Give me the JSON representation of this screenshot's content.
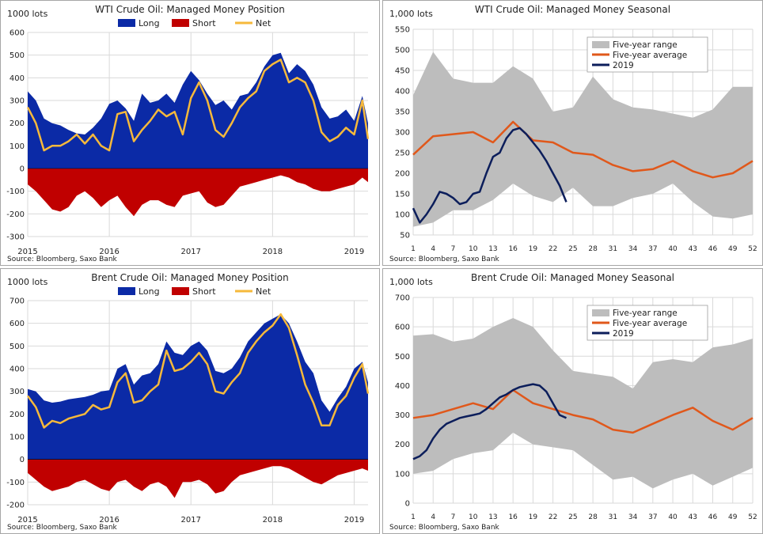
{
  "colors": {
    "long": "#0b2aa6",
    "short": "#c00000",
    "net": "#f6b93b",
    "range": "#bdbdbd",
    "avg": "#e0581b",
    "y2019": "#0c1e5b",
    "grid": "#d9d9d9"
  },
  "chart_data": [
    {
      "type": "area",
      "title": "WTI Crude Oil: Managed Money Position",
      "unit_label": "1000 lots",
      "source": "Source: Bloomberg, Saxo Bank",
      "legend": [
        "Long",
        "Short",
        "Net"
      ],
      "legend_position": "top",
      "grid": true,
      "ylim": [
        -300,
        600
      ],
      "yticks": [
        "600",
        "500",
        "400",
        "300",
        "200",
        "100",
        "0",
        "-100",
        "-200",
        "-300"
      ],
      "xticks": [
        "2015",
        "2016",
        "2017",
        "2018",
        "2019"
      ],
      "x_range": [
        2015.0,
        2019.17
      ],
      "x": [
        2015.0,
        2015.1,
        2015.2,
        2015.3,
        2015.4,
        2015.5,
        2015.6,
        2015.7,
        2015.8,
        2015.9,
        2016.0,
        2016.1,
        2016.2,
        2016.3,
        2016.4,
        2016.5,
        2016.6,
        2016.7,
        2016.8,
        2016.9,
        2017.0,
        2017.1,
        2017.2,
        2017.3,
        2017.4,
        2017.5,
        2017.6,
        2017.7,
        2017.8,
        2017.9,
        2018.0,
        2018.1,
        2018.2,
        2018.3,
        2018.4,
        2018.5,
        2018.6,
        2018.7,
        2018.8,
        2018.9,
        2019.0,
        2019.1,
        2019.17
      ],
      "series": [
        {
          "name": "Long",
          "values": [
            340,
            300,
            220,
            200,
            190,
            170,
            155,
            150,
            180,
            220,
            285,
            300,
            265,
            210,
            330,
            290,
            300,
            330,
            290,
            370,
            430,
            390,
            330,
            280,
            300,
            260,
            320,
            330,
            380,
            450,
            500,
            510,
            420,
            460,
            430,
            370,
            270,
            220,
            230,
            260,
            210,
            320,
            200
          ]
        },
        {
          "name": "Short",
          "values": [
            -70,
            -100,
            -140,
            -180,
            -190,
            -170,
            -120,
            -100,
            -130,
            -170,
            -140,
            -120,
            -170,
            -210,
            -160,
            -140,
            -140,
            -160,
            -170,
            -120,
            -110,
            -100,
            -150,
            -170,
            -160,
            -120,
            -80,
            -70,
            -60,
            -50,
            -40,
            -30,
            -40,
            -60,
            -70,
            -90,
            -100,
            -100,
            -90,
            -80,
            -70,
            -40,
            -60
          ]
        },
        {
          "name": "Net",
          "values": [
            270,
            200,
            80,
            100,
            100,
            120,
            150,
            110,
            150,
            100,
            80,
            240,
            250,
            120,
            170,
            210,
            260,
            230,
            250,
            150,
            310,
            380,
            300,
            170,
            140,
            200,
            270,
            310,
            340,
            430,
            460,
            480,
            380,
            400,
            380,
            300,
            160,
            120,
            140,
            180,
            150,
            300,
            130
          ]
        }
      ]
    },
    {
      "type": "area",
      "title": "WTI Crude Oil: Managed Money Seasonal",
      "unit_label": "1,000 lots",
      "source": "Source: Bloomberg, Saxo Bank",
      "legend": [
        "Five-year range",
        "Five-year average",
        "2019"
      ],
      "legend_position": "top-right",
      "grid": true,
      "ylim": [
        50,
        550
      ],
      "yticks": [
        "550",
        "500",
        "450",
        "400",
        "350",
        "300",
        "250",
        "200",
        "150",
        "100",
        "50"
      ],
      "xticks": [
        "1",
        "4",
        "7",
        "10",
        "13",
        "16",
        "19",
        "22",
        "25",
        "28",
        "31",
        "34",
        "37",
        "40",
        "43",
        "46",
        "49",
        "52"
      ],
      "x_range": [
        1,
        52
      ],
      "x": [
        1,
        4,
        7,
        10,
        13,
        16,
        19,
        22,
        25,
        28,
        31,
        34,
        37,
        40,
        43,
        46,
        49,
        52
      ],
      "range_upper": [
        390,
        495,
        430,
        420,
        420,
        460,
        430,
        350,
        360,
        435,
        380,
        360,
        355,
        345,
        335,
        355,
        410,
        410
      ],
      "range_lower": [
        70,
        80,
        110,
        110,
        135,
        175,
        145,
        130,
        165,
        120,
        120,
        140,
        150,
        175,
        130,
        95,
        90,
        100
      ],
      "series": [
        {
          "name": "Five-year average",
          "values": [
            245,
            290,
            295,
            300,
            275,
            325,
            280,
            275,
            250,
            245,
            220,
            205,
            210,
            230,
            205,
            190,
            200,
            230
          ]
        },
        {
          "name": "2019",
          "x": [
            1,
            2,
            3,
            4,
            5,
            6,
            7,
            8,
            9,
            10,
            11,
            12,
            13,
            14,
            15,
            16,
            17,
            18,
            19,
            20,
            21,
            22,
            23,
            24
          ],
          "values": [
            115,
            80,
            100,
            125,
            155,
            150,
            140,
            125,
            130,
            150,
            155,
            200,
            240,
            250,
            285,
            305,
            310,
            295,
            275,
            255,
            230,
            200,
            170,
            130
          ]
        }
      ]
    },
    {
      "type": "area",
      "title": "Brent Crude Oil: Managed Money Position",
      "unit_label": "1000 lots",
      "source": "Source: Bloomberg, Saxo Bank",
      "legend": [
        "Long",
        "Short",
        "Net"
      ],
      "legend_position": "top",
      "grid": true,
      "ylim": [
        -200,
        700
      ],
      "yticks": [
        "700",
        "600",
        "500",
        "400",
        "300",
        "200",
        "100",
        "0",
        "-100",
        "-200"
      ],
      "xticks": [
        "2015",
        "2016",
        "2017",
        "2018",
        "2019"
      ],
      "x_range": [
        2015.0,
        2019.17
      ],
      "x": [
        2015.0,
        2015.1,
        2015.2,
        2015.3,
        2015.4,
        2015.5,
        2015.6,
        2015.7,
        2015.8,
        2015.9,
        2016.0,
        2016.1,
        2016.2,
        2016.3,
        2016.4,
        2016.5,
        2016.6,
        2016.7,
        2016.8,
        2016.9,
        2017.0,
        2017.1,
        2017.2,
        2017.3,
        2017.4,
        2017.5,
        2017.6,
        2017.7,
        2017.8,
        2017.9,
        2018.0,
        2018.1,
        2018.2,
        2018.3,
        2018.4,
        2018.5,
        2018.6,
        2018.7,
        2018.8,
        2018.9,
        2019.0,
        2019.1,
        2019.17
      ],
      "series": [
        {
          "name": "Long",
          "values": [
            310,
            300,
            260,
            250,
            255,
            265,
            270,
            275,
            285,
            300,
            305,
            400,
            420,
            330,
            370,
            380,
            420,
            520,
            470,
            460,
            500,
            520,
            480,
            390,
            380,
            400,
            450,
            520,
            560,
            600,
            620,
            640,
            600,
            520,
            430,
            380,
            260,
            210,
            270,
            320,
            400,
            430,
            340
          ]
        },
        {
          "name": "Short",
          "values": [
            -60,
            -90,
            -120,
            -140,
            -130,
            -120,
            -100,
            -90,
            -110,
            -130,
            -140,
            -100,
            -90,
            -120,
            -140,
            -110,
            -100,
            -120,
            -170,
            -100,
            -100,
            -90,
            -110,
            -150,
            -140,
            -100,
            -70,
            -60,
            -50,
            -40,
            -30,
            -30,
            -40,
            -60,
            -80,
            -100,
            -110,
            -90,
            -70,
            -60,
            -50,
            -40,
            -50
          ]
        },
        {
          "name": "Net",
          "values": [
            280,
            230,
            140,
            170,
            160,
            180,
            190,
            200,
            240,
            220,
            230,
            340,
            380,
            250,
            260,
            300,
            330,
            480,
            390,
            400,
            430,
            470,
            420,
            300,
            290,
            340,
            380,
            470,
            520,
            560,
            590,
            640,
            580,
            460,
            330,
            250,
            150,
            150,
            240,
            280,
            360,
            420,
            290
          ]
        }
      ]
    },
    {
      "type": "area",
      "title": "Brent Crude Oil: Managed Money Seasonal",
      "unit_label": "1,000 lots",
      "source": "Source: Bloomberg, Saxo Bank",
      "legend": [
        "Five-year range",
        "Five-year average",
        "2019"
      ],
      "legend_position": "top-right",
      "grid": true,
      "ylim": [
        0,
        700
      ],
      "yticks": [
        "700",
        "600",
        "500",
        "400",
        "300",
        "200",
        "100",
        "0"
      ],
      "xticks": [
        "1",
        "4",
        "7",
        "10",
        "13",
        "16",
        "19",
        "22",
        "25",
        "28",
        "31",
        "34",
        "37",
        "40",
        "43",
        "46",
        "49",
        "52"
      ],
      "x_range": [
        1,
        52
      ],
      "x": [
        1,
        4,
        7,
        10,
        13,
        16,
        19,
        22,
        25,
        28,
        31,
        34,
        37,
        40,
        43,
        46,
        49,
        52
      ],
      "range_upper": [
        570,
        575,
        550,
        560,
        600,
        630,
        600,
        520,
        450,
        440,
        430,
        390,
        480,
        490,
        480,
        530,
        540,
        560
      ],
      "range_lower": [
        100,
        110,
        150,
        170,
        180,
        240,
        200,
        190,
        180,
        130,
        80,
        90,
        50,
        80,
        100,
        60,
        90,
        120
      ],
      "series": [
        {
          "name": "Five-year average",
          "values": [
            290,
            300,
            320,
            340,
            320,
            385,
            340,
            320,
            300,
            285,
            250,
            240,
            270,
            300,
            325,
            280,
            250,
            290
          ]
        },
        {
          "name": "2019",
          "x": [
            1,
            2,
            3,
            4,
            5,
            6,
            7,
            8,
            9,
            10,
            11,
            12,
            13,
            14,
            15,
            16,
            17,
            18,
            19,
            20,
            21,
            22,
            23,
            24
          ],
          "values": [
            150,
            160,
            180,
            220,
            250,
            270,
            280,
            290,
            295,
            300,
            305,
            320,
            340,
            360,
            370,
            385,
            395,
            400,
            405,
            400,
            380,
            340,
            300,
            290
          ]
        }
      ]
    }
  ]
}
